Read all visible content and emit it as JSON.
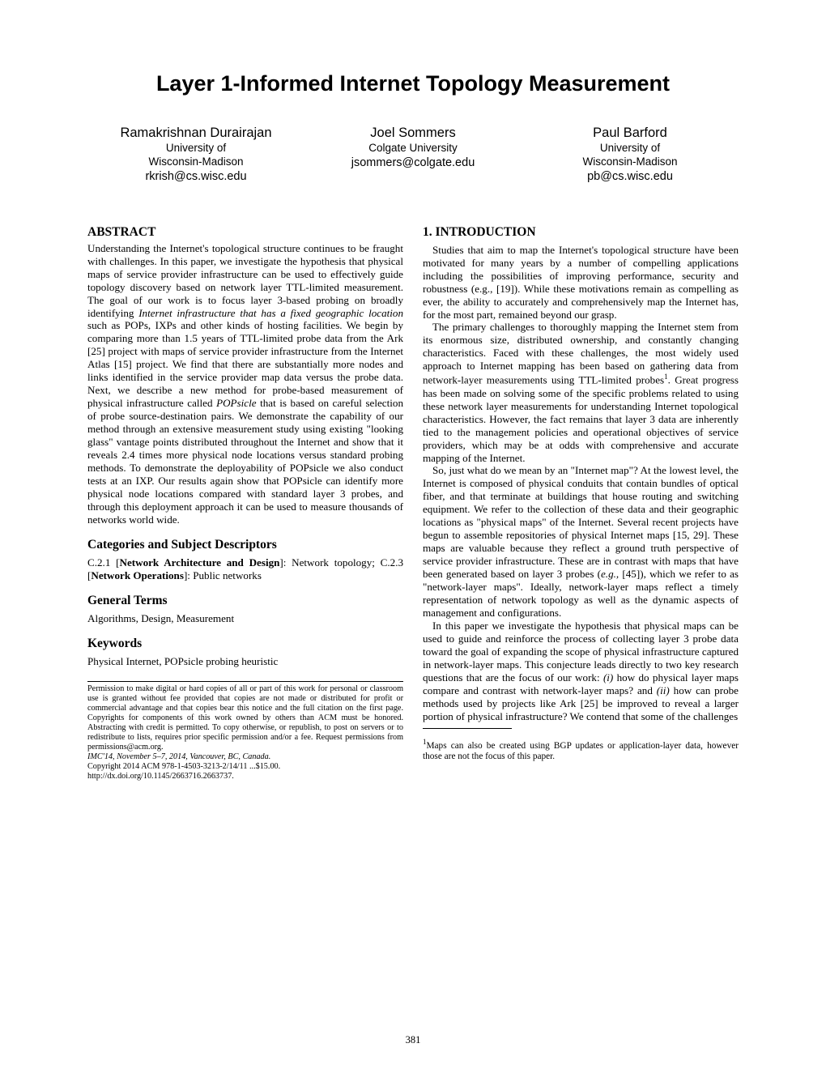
{
  "title": "Layer 1-Informed Internet Topology Measurement",
  "authors": [
    {
      "name": "Ramakrishnan Durairajan",
      "affil": "University of\nWisconsin-Madison",
      "email": "rkrish@cs.wisc.edu"
    },
    {
      "name": "Joel Sommers",
      "affil": "Colgate University",
      "email": "jsommers@colgate.edu"
    },
    {
      "name": "Paul Barford",
      "affil": "University of\nWisconsin-Madison",
      "email": "pb@cs.wisc.edu"
    }
  ],
  "abstract_heading": "ABSTRACT",
  "abstract_para": "Understanding the Internet's topological structure continues to be fraught with challenges. In this paper, we investigate the hypothesis that physical maps of service provider infrastructure can be used to effectively guide topology discovery based on network layer TTL-limited measurement. The goal of our work is to focus layer 3-based probing on broadly identifying Internet infrastructure that has a fixed geographic location such as POPs, IXPs and other kinds of hosting facilities. We begin by comparing more than 1.5 years of TTL-limited probe data from the Ark [25] project with maps of service provider infrastructure from the Internet Atlas [15] project. We find that there are substantially more nodes and links identified in the service provider map data versus the probe data. Next, we describe a new method for probe-based measurement of physical infrastructure called POPsicle that is based on careful selection of probe source-destination pairs. We demonstrate the capability of our method through an extensive measurement study using existing \"looking glass\" vantage points distributed throughout the Internet and show that it reveals 2.4 times more physical node locations versus standard probing methods. To demonstrate the deployability of POPsicle we also conduct tests at an IXP. Our results again show that POPsicle can identify more physical node locations compared with standard layer 3 probes, and through this deployment approach it can be used to measure thousands of networks world wide.",
  "categories_heading": "Categories and Subject Descriptors",
  "categories_text_1": "C.2.1 [",
  "categories_bold_1": "Network Architecture and Design",
  "categories_text_2": "]: Network topology; C.2.3 [",
  "categories_bold_2": "Network Operations",
  "categories_text_3": "]: Public networks",
  "general_terms_heading": "General Terms",
  "general_terms_text": "Algorithms, Design, Measurement",
  "keywords_heading": "Keywords",
  "keywords_text": "Physical Internet, POPsicle probing heuristic",
  "permission_text": "Permission to make digital or hard copies of all or part of this work for personal or classroom use is granted without fee provided that copies are not made or distributed for profit or commercial advantage and that copies bear this notice and the full citation on the first page. Copyrights for components of this work owned by others than ACM must be honored. Abstracting with credit is permitted. To copy otherwise, or republish, to post on servers or to redistribute to lists, requires prior specific permission and/or a fee. Request permissions from permissions@acm.org.",
  "conf_text": "IMC'14, November 5–7, 2014, Vancouver, BC, Canada.",
  "copyright_text": "Copyright 2014 ACM 978-1-4503-3213-2/14/11 ...$15.00.",
  "doi_text": "http://dx.doi.org/10.1145/2663716.2663737.",
  "intro_heading": "1.   INTRODUCTION",
  "intro_p1": "Studies that aim to map the Internet's topological structure have been motivated for many years by a number of compelling applications including the possibilities of improving performance, security and robustness (e.g., [19]). While these motivations remain as compelling as ever, the ability to accurately and comprehensively map the Internet has, for the most part, remained beyond our grasp.",
  "intro_p2_a": "The primary challenges to thoroughly mapping the Internet stem from its enormous size, distributed ownership, and constantly changing characteristics. Faced with these challenges, the most widely used approach to Internet mapping has been based on gathering data from network-layer measurements using TTL-limited probes",
  "intro_p2_b": ". Great progress has been made on solving some of the specific problems related to using these network layer measurements for understanding Internet topological characteristics. However, the fact remains that layer 3 data are inherently tied to the management policies and operational objectives of service providers, which may be at odds with comprehensive and accurate mapping of the Internet.",
  "intro_p3_a": "So, just what do we mean by an \"Internet map\"? At the lowest level, the Internet is composed of physical conduits that contain bundles of optical fiber, and that terminate at buildings that house routing and switching equipment. We refer to the collection of these data and their geographic locations as \"physical maps\" of the Internet. Several recent projects have begun to assemble repositories of physical Internet maps [15, 29]. These maps are valuable because they reflect a ground truth perspective of service provider infrastructure. These are in contrast with maps that have been generated based on layer 3 probes (",
  "intro_p3_eg": "e.g.,",
  "intro_p3_b": " [45]), which we refer to as \"network-layer maps\". Ideally, network-layer maps reflect a timely representation of network topology as well as the dynamic aspects of management and configurations.",
  "intro_p4_a": "In this paper we investigate the hypothesis that physical maps can be used to guide and reinforce the process of collecting layer 3 probe data toward the goal of expanding the scope of physical infrastructure captured in network-layer maps. This conjecture leads directly to two key research questions that are the focus of our work: ",
  "intro_p4_i": "(i)",
  "intro_p4_b": " how do physical layer maps compare and contrast with network-layer maps? and ",
  "intro_p4_ii": "(ii)",
  "intro_p4_c": " how can probe methods used by projects like Ark [25] be improved to reveal a larger portion of physical infrastructure? We contend that some of the challenges",
  "footnote_sup": "1",
  "footnote_text": "Maps can also be created using BGP updates or application-layer data, however those are not the focus of this paper.",
  "pagenum": "381"
}
